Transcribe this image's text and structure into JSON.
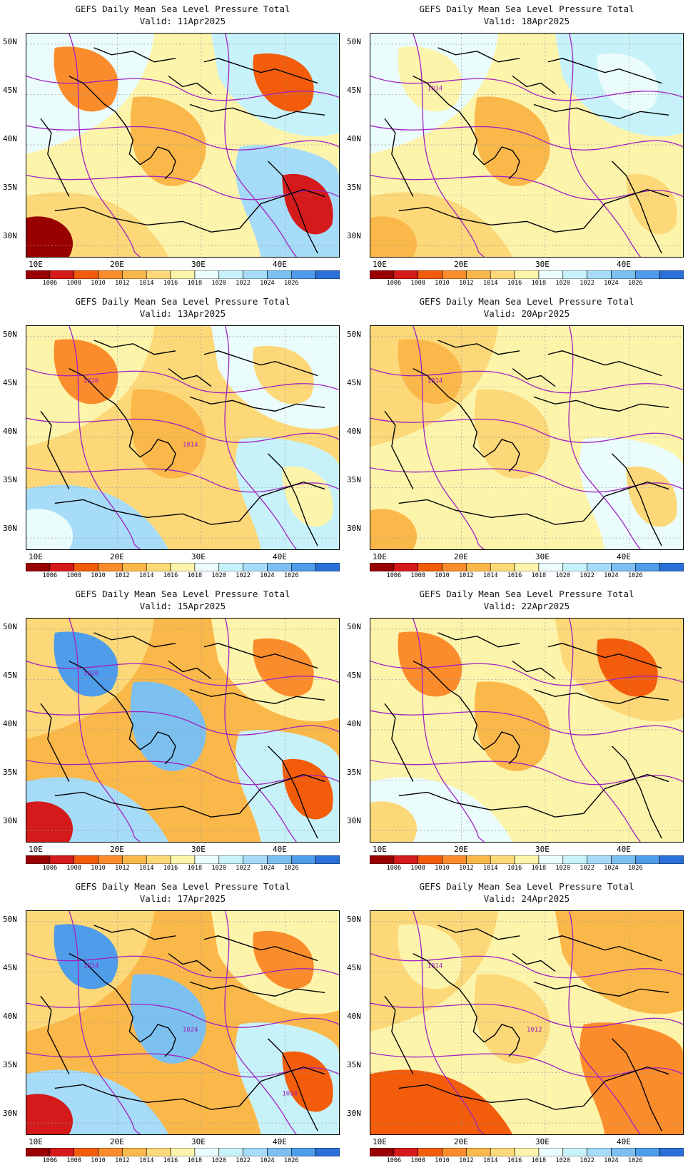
{
  "panel_title": "GEFS Daily Mean Sea Level Pressure Total",
  "colorbar": {
    "colors": [
      "#990000",
      "#d41a1a",
      "#f25c0a",
      "#fb8c2c",
      "#fbb84a",
      "#fcd878",
      "#fdf4ac",
      "#eafcfc",
      "#c8f2fa",
      "#a6dcf8",
      "#7cc0f0",
      "#4f9ceb",
      "#2a70d8"
    ],
    "labels": [
      "1006",
      "1008",
      "1010",
      "1012",
      "1014",
      "1016",
      "1018",
      "1020",
      "1022",
      "1024",
      "1026"
    ]
  },
  "axes": {
    "lat_labels": [
      "50N",
      "45N",
      "40N",
      "35N",
      "30N"
    ],
    "lon_labels": [
      "10E",
      "20E",
      "30E",
      "40E"
    ]
  },
  "panels": [
    {
      "valid": "Valid: 11Apr2025",
      "col": 0,
      "row": 0,
      "level": 0
    },
    {
      "valid": "Valid: 18Apr2025",
      "col": 1,
      "row": 0,
      "level": 3
    },
    {
      "valid": "Valid: 13Apr2025",
      "col": 0,
      "row": 1,
      "level": 1
    },
    {
      "valid": "Valid: 20Apr2025",
      "col": 1,
      "row": 1,
      "level": 4
    },
    {
      "valid": "Valid: 15Apr2025",
      "col": 0,
      "row": 2,
      "level": 2
    },
    {
      "valid": "Valid: 22Apr2025",
      "col": 1,
      "row": 2,
      "level": 5
    },
    {
      "valid": "Valid: 17Apr2025",
      "col": 0,
      "row": 3,
      "level": 2
    },
    {
      "valid": "Valid: 24Apr2025",
      "col": 1,
      "row": 3,
      "level": 6
    }
  ],
  "contour_labels": [
    {
      "panel": 1,
      "text": "1014"
    },
    {
      "panel": 2,
      "text": "1020"
    },
    {
      "panel": 2,
      "text": "1014"
    },
    {
      "panel": 3,
      "text": "1014"
    },
    {
      "panel": 4,
      "text": "1020"
    },
    {
      "panel": 6,
      "text": "1014"
    },
    {
      "panel": 6,
      "text": "1024"
    },
    {
      "panel": 6,
      "text": "1014"
    },
    {
      "panel": 7,
      "text": "1014"
    },
    {
      "panel": 7,
      "text": "1012"
    }
  ]
}
